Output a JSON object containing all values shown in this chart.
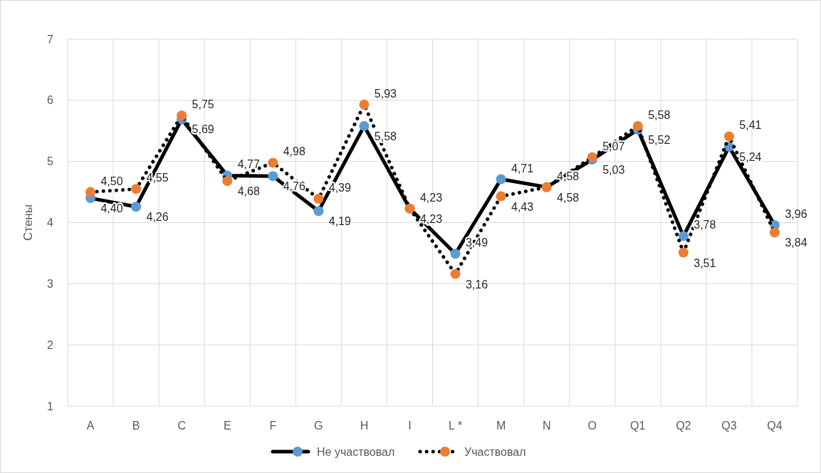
{
  "chart_data": {
    "type": "line",
    "ylabel": "Стены",
    "categories": [
      "A",
      "B",
      "C",
      "E",
      "F",
      "G",
      "H",
      "I",
      "L *",
      "M",
      "N",
      "O",
      "Q1",
      "Q2",
      "Q3",
      "Q4"
    ],
    "series": [
      {
        "name": "Не участвовал",
        "color": "#5b9bd5",
        "line_style": "solid",
        "values": [
          4.4,
          4.26,
          5.69,
          4.77,
          4.76,
          4.19,
          5.58,
          4.23,
          3.49,
          4.71,
          4.58,
          5.03,
          5.52,
          3.78,
          5.24,
          3.96
        ],
        "value_labels": [
          "4,40",
          "4,26",
          "5,69",
          "4,77",
          "4,76",
          "4,19",
          "5,58",
          "4,23",
          "3,49",
          "4,71",
          "4,58",
          "5,03",
          "5,52",
          "3,78",
          "5,24",
          "3,96"
        ]
      },
      {
        "name": "Участвовал",
        "color": "#ed7d31",
        "line_style": "dotted",
        "values": [
          4.5,
          4.55,
          5.75,
          4.68,
          4.98,
          4.39,
          5.93,
          4.23,
          3.16,
          4.43,
          4.58,
          5.07,
          5.58,
          3.51,
          5.41,
          3.84
        ],
        "value_labels": [
          "4,50",
          "4,55",
          "5,75",
          "4,68",
          "4,98",
          "4,39",
          "5,93",
          "4,23",
          "3,16",
          "4,43",
          "4,58",
          "5,07",
          "5,58",
          "3,51",
          "5,41",
          "3,84"
        ]
      }
    ],
    "ylim": [
      1,
      7
    ],
    "yticks": [
      1,
      2,
      3,
      4,
      5,
      6,
      7
    ],
    "grid": true,
    "marker": "circle",
    "legend": "bottom"
  }
}
